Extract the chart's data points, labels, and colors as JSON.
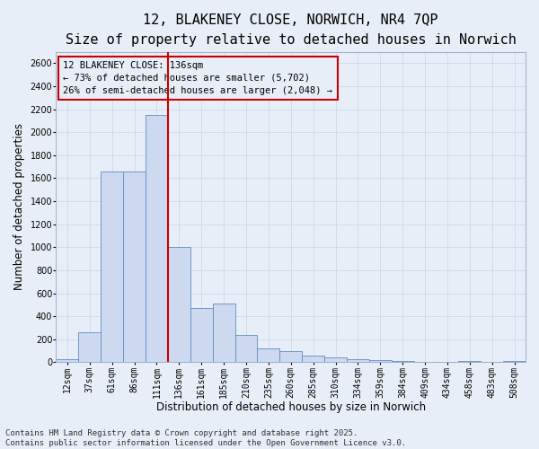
{
  "title": "12, BLAKENEY CLOSE, NORWICH, NR4 7QP",
  "subtitle": "Size of property relative to detached houses in Norwich",
  "xlabel": "Distribution of detached houses by size in Norwich",
  "ylabel": "Number of detached properties",
  "footer_line1": "Contains HM Land Registry data © Crown copyright and database right 2025.",
  "footer_line2": "Contains public sector information licensed under the Open Government Licence v3.0.",
  "categories": [
    "12sqm",
    "37sqm",
    "61sqm",
    "86sqm",
    "111sqm",
    "136sqm",
    "161sqm",
    "185sqm",
    "210sqm",
    "235sqm",
    "260sqm",
    "285sqm",
    "310sqm",
    "334sqm",
    "359sqm",
    "384sqm",
    "409sqm",
    "434sqm",
    "458sqm",
    "483sqm",
    "508sqm"
  ],
  "values": [
    30,
    260,
    1660,
    1660,
    2150,
    1000,
    470,
    510,
    240,
    120,
    100,
    55,
    40,
    25,
    15,
    10,
    5,
    5,
    10,
    5,
    10
  ],
  "bar_color": "#cdd9ef",
  "bar_edge_color": "#5b8ec4",
  "vline_color": "#cc0000",
  "vline_index": 4.5,
  "annotation_text": "12 BLAKENEY CLOSE: 136sqm\n← 73% of detached houses are smaller (5,702)\n26% of semi-detached houses are larger (2,048) →",
  "annotation_box_color": "#cc0000",
  "ylim": [
    0,
    2700
  ],
  "yticks": [
    0,
    200,
    400,
    600,
    800,
    1000,
    1200,
    1400,
    1600,
    1800,
    2000,
    2200,
    2400,
    2600
  ],
  "grid_color": "#c5d5e8",
  "background_color": "#e8eef7",
  "title_fontsize": 11,
  "subtitle_fontsize": 9.5,
  "label_fontsize": 8.5,
  "tick_fontsize": 7,
  "footer_fontsize": 6.5,
  "annotation_fontsize": 7.5
}
